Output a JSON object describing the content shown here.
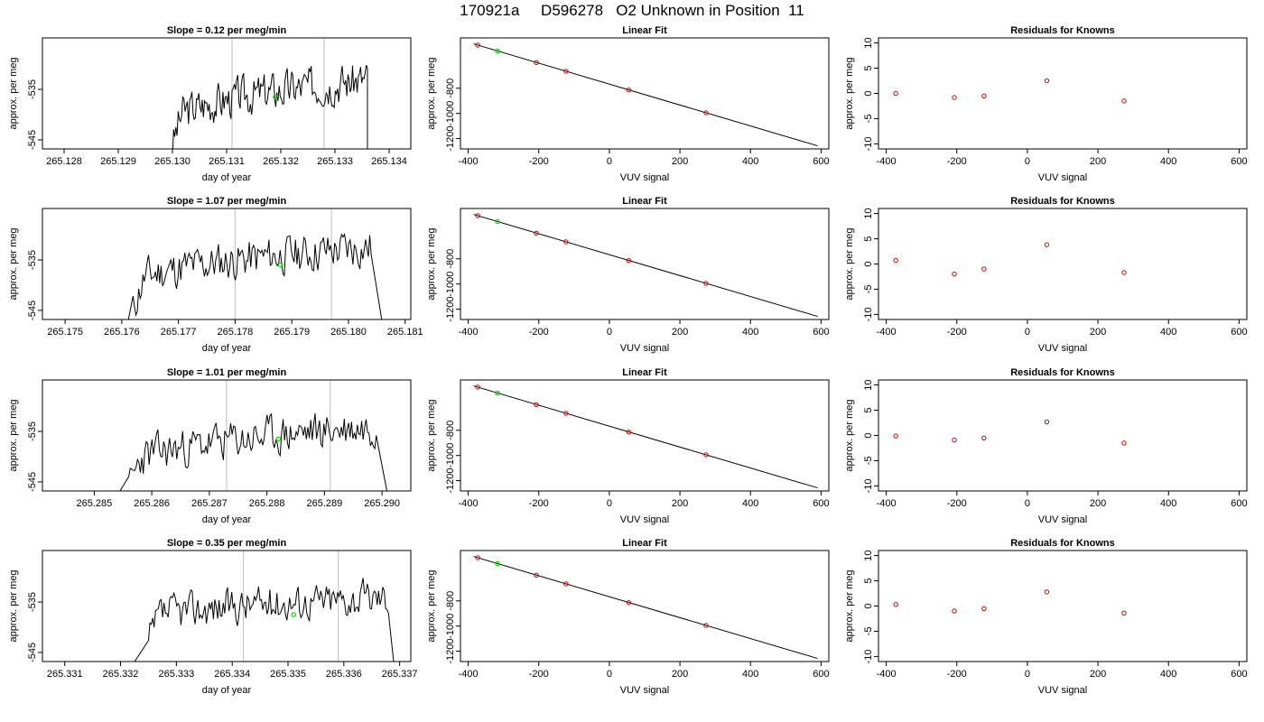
{
  "page_title": "170921a     D596278   O2 Unknown in Position  11",
  "colors": {
    "trace": "#000000",
    "highlight": "#00dd00",
    "known_point": "#cc0000",
    "grid_marker": "#c8c8c8"
  },
  "chart_data": [
    {
      "type": "line",
      "title": "Slope =  0.12  per meg/min",
      "xlabel": "day of year",
      "ylabel": "approx. per meg",
      "xlim": [
        265.1276,
        265.1344
      ],
      "ylim": [
        -546.8,
        -524.8
      ],
      "xticks": [
        265.128,
        265.129,
        265.13,
        265.131,
        265.132,
        265.133,
        265.134
      ],
      "xticklabels": [
        "265.128",
        "265.129",
        "265.130",
        "265.131",
        "265.132",
        "265.133",
        "265.134"
      ],
      "yticks": [
        -545,
        -535
      ],
      "yticklabels": [
        "-545",
        "-535"
      ],
      "vlines": [
        265.1311,
        265.1328
      ],
      "trace": {
        "start": 265.13,
        "end": 265.1336,
        "edge_start": 265.1293,
        "edge_end": 265.1336,
        "level_start": -541.5,
        "level_end": -533.0,
        "wiggle": 3.5,
        "seed": 3
      },
      "highlight_point": {
        "x": 265.1319,
        "y": -536.5
      }
    },
    {
      "type": "scatter",
      "title": "Linear Fit",
      "xlabel": "VUV signal",
      "ylabel": "approx. per meg",
      "xlim": [
        -422,
        622
      ],
      "ylim": [
        -1282,
        -400
      ],
      "xticks": [
        -400,
        -200,
        0,
        200,
        400,
        600
      ],
      "xticklabels": [
        "-400",
        "-200",
        "0",
        "200",
        "400",
        "600"
      ],
      "yticks": [
        -1200,
        -1000,
        -800
      ],
      "yticklabels": [
        "-1200",
        "-1000",
        "-800"
      ],
      "fit_line": {
        "slope": -0.831,
        "intercept": -767,
        "x_from": -385,
        "x_to": 590
      },
      "known_points": [
        [
          -373,
          -457
        ],
        [
          -207,
          -596
        ],
        [
          -123,
          -665
        ],
        [
          55,
          -814
        ],
        [
          274,
          -995
        ]
      ],
      "highlight_point": {
        "x": -317,
        "y": -504
      }
    },
    {
      "type": "scatter",
      "title": "Residuals for Knowns",
      "xlabel": "VUV signal",
      "ylabel": "approx. per meg",
      "xlim": [
        -422,
        622
      ],
      "ylim": [
        -11,
        11
      ],
      "xticks": [
        -400,
        -200,
        0,
        200,
        400,
        600
      ],
      "xticklabels": [
        "-400",
        "-200",
        "0",
        "200",
        "400",
        "600"
      ],
      "yticks": [
        -10,
        -5,
        0,
        5,
        10
      ],
      "yticklabels": [
        "-10",
        "-5",
        "0",
        "5",
        "10"
      ],
      "points": [
        [
          -373,
          0.0
        ],
        [
          -207,
          -0.8
        ],
        [
          -123,
          -0.5
        ],
        [
          55,
          2.5
        ],
        [
          274,
          -1.5
        ]
      ]
    },
    {
      "type": "line",
      "title": "Slope =  1.07  per meg/min",
      "xlabel": "day of year",
      "ylabel": "approx. per meg",
      "xlim": [
        265.1746,
        265.1811
      ],
      "ylim": [
        -546.8,
        -524.8
      ],
      "xticks": [
        265.175,
        265.176,
        265.177,
        265.178,
        265.179,
        265.18,
        265.181
      ],
      "xticklabels": [
        "265.175",
        "265.176",
        "265.177",
        "265.178",
        "265.179",
        "265.180",
        "265.181"
      ],
      "yticks": [
        -545,
        -535
      ],
      "yticklabels": [
        "-545",
        "-535"
      ],
      "vlines": [
        265.178,
        265.1797
      ],
      "trace": {
        "start": 265.1762,
        "end": 265.1804,
        "edge_start": 265.1761,
        "edge_end": 265.1806,
        "level_start": -540.0,
        "level_end": -532.5,
        "wiggle": 3.5,
        "seed": 11
      },
      "highlight_point": {
        "x": 265.1788,
        "y": -536.0
      }
    },
    {
      "type": "scatter",
      "title": "Linear Fit",
      "xlabel": "VUV signal",
      "ylabel": "approx. per meg",
      "xlim": [
        -422,
        622
      ],
      "ylim": [
        -1282,
        -400
      ],
      "xticks": [
        -400,
        -200,
        0,
        200,
        400,
        600
      ],
      "xticklabels": [
        "-400",
        "-200",
        "0",
        "200",
        "400",
        "600"
      ],
      "yticks": [
        -1200,
        -1000,
        -800
      ],
      "yticklabels": [
        "-1200",
        "-1000",
        "-800"
      ],
      "fit_line": {
        "slope": -0.831,
        "intercept": -767,
        "x_from": -385,
        "x_to": 590
      },
      "known_points": [
        [
          -373,
          -457
        ],
        [
          -207,
          -596
        ],
        [
          -123,
          -665
        ],
        [
          55,
          -814
        ],
        [
          274,
          -995
        ]
      ],
      "highlight_point": {
        "x": -317,
        "y": -504
      }
    },
    {
      "type": "scatter",
      "title": "Residuals for Knowns",
      "xlabel": "VUV signal",
      "ylabel": "approx. per meg",
      "xlim": [
        -422,
        622
      ],
      "ylim": [
        -11,
        11
      ],
      "xticks": [
        -400,
        -200,
        0,
        200,
        400,
        600
      ],
      "xticklabels": [
        "-400",
        "-200",
        "0",
        "200",
        "400",
        "600"
      ],
      "yticks": [
        -10,
        -5,
        0,
        5,
        10
      ],
      "yticklabels": [
        "-10",
        "-5",
        "0",
        "5",
        "10"
      ],
      "points": [
        [
          -373,
          0.7
        ],
        [
          -207,
          -2.0
        ],
        [
          -123,
          -1.0
        ],
        [
          55,
          3.8
        ],
        [
          274,
          -1.7
        ]
      ]
    },
    {
      "type": "line",
      "title": "Slope =  1.01  per meg/min",
      "xlabel": "day of year",
      "ylabel": "approx. per meg",
      "xlim": [
        265.2841,
        265.2905
      ],
      "ylim": [
        -546.8,
        -524.8
      ],
      "xticks": [
        265.285,
        265.286,
        265.287,
        265.288,
        265.289,
        265.29
      ],
      "xticklabels": [
        "265.285",
        "265.286",
        "265.287",
        "265.288",
        "265.289",
        "265.290"
      ],
      "yticks": [
        -545,
        -535
      ],
      "yticklabels": [
        "-545",
        "-535"
      ],
      "vlines": [
        265.2873,
        265.2891
      ],
      "trace": {
        "start": 265.2856,
        "end": 265.2899,
        "edge_start": 265.2854,
        "edge_end": 265.2901,
        "level_start": -542.0,
        "level_end": -534.0,
        "wiggle": 3.5,
        "seed": 23
      },
      "highlight_point": {
        "x": 265.2882,
        "y": -536.5
      }
    },
    {
      "type": "scatter",
      "title": "Linear Fit",
      "xlabel": "VUV signal",
      "ylabel": "approx. per meg",
      "xlim": [
        -422,
        622
      ],
      "ylim": [
        -1282,
        -400
      ],
      "xticks": [
        -400,
        -200,
        0,
        200,
        400,
        600
      ],
      "xticklabels": [
        "-400",
        "-200",
        "0",
        "200",
        "400",
        "600"
      ],
      "yticks": [
        -1200,
        -1000,
        -800
      ],
      "yticklabels": [
        "-1200",
        "-1000",
        "-800"
      ],
      "fit_line": {
        "slope": -0.831,
        "intercept": -767,
        "x_from": -385,
        "x_to": 590
      },
      "known_points": [
        [
          -373,
          -457
        ],
        [
          -207,
          -596
        ],
        [
          -123,
          -665
        ],
        [
          55,
          -814
        ],
        [
          274,
          -995
        ]
      ],
      "highlight_point": {
        "x": -317,
        "y": -504
      }
    },
    {
      "type": "scatter",
      "title": "Residuals for Knowns",
      "xlabel": "VUV signal",
      "ylabel": "approx. per meg",
      "xlim": [
        -422,
        622
      ],
      "ylim": [
        -11,
        11
      ],
      "xticks": [
        -400,
        -200,
        0,
        200,
        400,
        600
      ],
      "xticklabels": [
        "-400",
        "-200",
        "0",
        "200",
        "400",
        "600"
      ],
      "yticks": [
        -10,
        -5,
        0,
        5,
        10
      ],
      "yticklabels": [
        "-10",
        "-5",
        "0",
        "5",
        "10"
      ],
      "points": [
        [
          -373,
          -0.1
        ],
        [
          -207,
          -0.9
        ],
        [
          -123,
          -0.5
        ],
        [
          55,
          2.7
        ],
        [
          274,
          -1.5
        ]
      ]
    },
    {
      "type": "line",
      "title": "Slope =  0.35  per meg/min",
      "xlabel": "day of year",
      "ylabel": "approx. per meg",
      "xlim": [
        265.3306,
        265.3372
      ],
      "ylim": [
        -546.8,
        -524.8
      ],
      "xticks": [
        265.331,
        265.332,
        265.333,
        265.334,
        265.335,
        265.336,
        265.337
      ],
      "xticklabels": [
        "265.331",
        "265.332",
        "265.333",
        "265.334",
        "265.335",
        "265.336",
        "265.337"
      ],
      "yticks": [
        -545,
        -535
      ],
      "yticklabels": [
        "-545",
        "-535"
      ],
      "vlines": [
        265.3342,
        265.3359
      ],
      "trace": {
        "start": 265.3325,
        "end": 265.3368,
        "edge_start": 265.3322,
        "edge_end": 265.3369,
        "level_start": -538.5,
        "level_end": -534.0,
        "wiggle": 3.2,
        "seed": 37
      },
      "highlight_point": {
        "x": 265.3351,
        "y": -537.5
      }
    },
    {
      "type": "scatter",
      "title": "Linear Fit",
      "xlabel": "VUV signal",
      "ylabel": "approx. per meg",
      "xlim": [
        -422,
        622
      ],
      "ylim": [
        -1282,
        -400
      ],
      "xticks": [
        -400,
        -200,
        0,
        200,
        400,
        600
      ],
      "xticklabels": [
        "-400",
        "-200",
        "0",
        "200",
        "400",
        "600"
      ],
      "yticks": [
        -1200,
        -1000,
        -800
      ],
      "yticklabels": [
        "-1200",
        "-1000",
        "-800"
      ],
      "fit_line": {
        "slope": -0.831,
        "intercept": -767,
        "x_from": -385,
        "x_to": 590
      },
      "known_points": [
        [
          -373,
          -457
        ],
        [
          -207,
          -596
        ],
        [
          -123,
          -665
        ],
        [
          55,
          -814
        ],
        [
          274,
          -995
        ]
      ],
      "highlight_point": {
        "x": -317,
        "y": -504
      }
    },
    {
      "type": "scatter",
      "title": "Residuals for Knowns",
      "xlabel": "VUV signal",
      "ylabel": "approx. per meg",
      "xlim": [
        -422,
        622
      ],
      "ylim": [
        -11,
        11
      ],
      "xticks": [
        -400,
        -200,
        0,
        200,
        400,
        600
      ],
      "xticklabels": [
        "-400",
        "-200",
        "0",
        "200",
        "400",
        "600"
      ],
      "yticks": [
        -10,
        -5,
        0,
        5,
        10
      ],
      "yticklabels": [
        "-10",
        "-5",
        "0",
        "5",
        "10"
      ],
      "points": [
        [
          -373,
          0.3
        ],
        [
          -207,
          -1.0
        ],
        [
          -123,
          -0.5
        ],
        [
          55,
          2.8
        ],
        [
          274,
          -1.4
        ]
      ]
    }
  ]
}
